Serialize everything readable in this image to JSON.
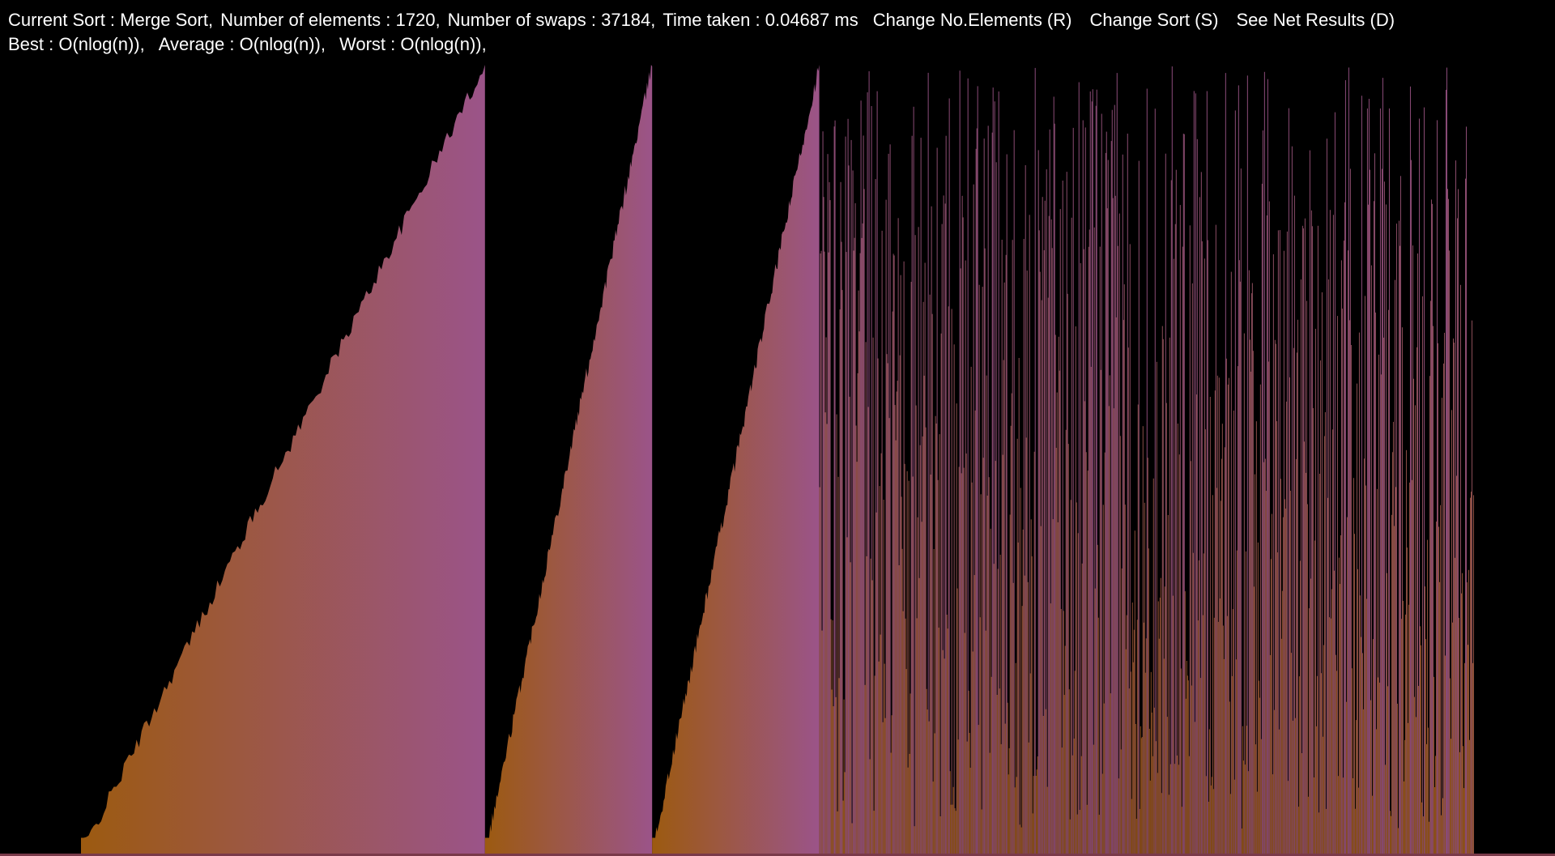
{
  "status": {
    "current_sort": "Current Sort : Merge Sort,",
    "elements": "Number of elements : 1720,",
    "swaps": "Number of swaps : 37184,",
    "time": "Time taken : 0.04687 ms"
  },
  "actions": {
    "change_elements": "Change No.Elements (R)",
    "change_sort": "Change Sort (S)",
    "net_results": "See Net Results (D)"
  },
  "complexity": {
    "best": "Best : O(nlog(n)),",
    "average": "Average : O(nlog(n)),",
    "worst": "Worst : O(nlog(n)),"
  },
  "array_state": {
    "total_elements": 1720,
    "sorted_runs": [
      {
        "start_fraction": 0.0,
        "end_fraction": 0.29
      },
      {
        "start_fraction": 0.29,
        "end_fraction": 0.41
      },
      {
        "start_fraction": 0.41,
        "end_fraction": 0.53
      }
    ],
    "unsorted_start_fraction": 0.53
  },
  "colors": {
    "background": "#000000",
    "text": "#ffffff",
    "bar_low": "#9c5a10",
    "bar_high": "#9b5489",
    "unsorted_bar": "#b06a7a",
    "baseline": "#7a3a4a"
  }
}
